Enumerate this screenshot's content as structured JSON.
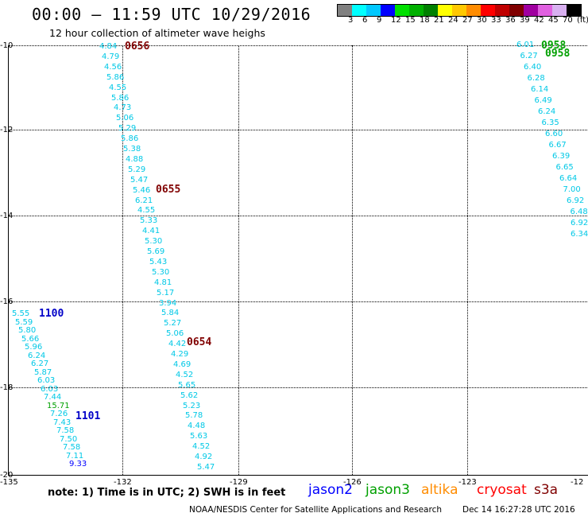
{
  "header": {
    "title": "00:00 – 11:59 UTC 10/29/2016",
    "subtitle": "12 hour collection of altimeter wave heighs"
  },
  "color_scale": {
    "swatches": [
      "#808080",
      "#00ffff",
      "#00c8ff",
      "#0000ff",
      "#00e000",
      "#00b000",
      "#008000",
      "#ffff00",
      "#ffc800",
      "#ff8c00",
      "#ff0000",
      "#c00000",
      "#800000",
      "#a000a0",
      "#e060e0",
      "#d8b0f0",
      "#000000"
    ],
    "labels": [
      "3",
      "6",
      "9",
      "12",
      "15",
      "18",
      "21",
      "24",
      "27",
      "30",
      "33",
      "36",
      "39",
      "42",
      "45",
      "70",
      "(ft)"
    ]
  },
  "axes": {
    "lat_labels": [
      "-10",
      "-12",
      "-14",
      "-16",
      "-18",
      "-20"
    ],
    "lon_labels": [
      "-135",
      "-132",
      "-129",
      "-126",
      "-123",
      "-12"
    ]
  },
  "tracks": [
    {
      "pass_label": "0656",
      "color": "#00c8e6",
      "values": [
        "4.84",
        "4.79",
        "4.56",
        "5.86",
        "4.55",
        "5.86",
        "4.73",
        "5.06",
        "5.29",
        "5.86",
        "5.38",
        "4.88",
        "5.29",
        "5.47",
        "5.46",
        "6.21",
        "4.55",
        "5.33",
        "4.41",
        "5.30",
        "5.69",
        "5.43",
        "5.30",
        "4.81",
        "5.17",
        "3.94",
        "5.84",
        "5.27",
        "5.06",
        "4.42",
        "4.29",
        "4.69",
        "4.52",
        "5.65",
        "5.62",
        "5.23",
        "5.78",
        "4.48",
        "5.63",
        "4.52",
        "4.92",
        "5.47"
      ]
    },
    {
      "pass_label": "0655",
      "color": "#00c8e6"
    },
    {
      "pass_label": "0654",
      "color": "#00c8e6"
    },
    {
      "pass_label": "1100",
      "color": "#00c8e6",
      "values": [
        "5.55",
        "5.59",
        "5.80",
        "5.66",
        "5.96",
        "6.24",
        "6.27",
        "5.87",
        "6.03",
        "6.03",
        "7.44",
        "15.71",
        "7.26",
        "7.43",
        "7.58",
        "7.50",
        "7.58",
        "7.11",
        "9.33"
      ],
      "value_colors": {
        "11": "#00a000",
        "18": "#0000ff"
      }
    },
    {
      "pass_label": "1101",
      "color": "#0000c8"
    },
    {
      "pass_label": "0958",
      "color": "#00a000",
      "values": [
        "6.01",
        "6.27",
        "6.40",
        "6.28",
        "6.14",
        "6.49",
        "6.24",
        "6.35",
        "6.60",
        "6.67",
        "6.39",
        "6.65",
        "6.64",
        "7.00",
        "6.92",
        "6.48",
        "6.92",
        "6.34"
      ]
    }
  ],
  "note": "note:  1) Time is in UTC;  2) SWH is in feet",
  "satellites": [
    {
      "name": "jason2",
      "color": "#0000ff"
    },
    {
      "name": "jason3",
      "color": "#00a000"
    },
    {
      "name": "altika",
      "color": "#ff8c00"
    },
    {
      "name": "cryosat",
      "color": "#ff0000"
    },
    {
      "name": "s3a",
      "color": "#800000"
    }
  ],
  "footer": {
    "credit": "NOAA/NESDIS Center for Satellite Applications and Research",
    "timestamp": "Dec 14 16:27:28 UTC 2016"
  }
}
